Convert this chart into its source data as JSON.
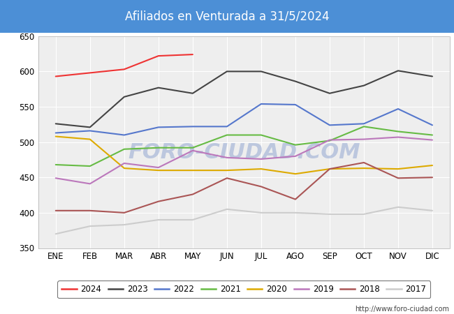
{
  "title": "Afiliados en Venturada a 31/5/2024",
  "title_color": "white",
  "title_bg_color": "#4C8FD6",
  "ylim": [
    350,
    650
  ],
  "yticks": [
    350,
    400,
    450,
    500,
    550,
    600,
    650
  ],
  "months": [
    "ENE",
    "FEB",
    "MAR",
    "ABR",
    "MAY",
    "JUN",
    "JUL",
    "AGO",
    "SEP",
    "OCT",
    "NOV",
    "DIC"
  ],
  "watermark": "FORO-CIUDAD.COM",
  "url": "http://www.foro-ciudad.com",
  "series": {
    "2024": {
      "color": "#EE3333",
      "linewidth": 1.5,
      "data": [
        593,
        598,
        603,
        622,
        624,
        null,
        null,
        null,
        null,
        null,
        null,
        null
      ]
    },
    "2023": {
      "color": "#444444",
      "linewidth": 1.5,
      "data": [
        526,
        521,
        564,
        577,
        569,
        600,
        600,
        586,
        569,
        580,
        601,
        593
      ]
    },
    "2022": {
      "color": "#5577CC",
      "linewidth": 1.5,
      "data": [
        513,
        516,
        510,
        521,
        522,
        522,
        554,
        553,
        524,
        526,
        547,
        524
      ]
    },
    "2021": {
      "color": "#66BB44",
      "linewidth": 1.5,
      "data": [
        468,
        466,
        490,
        492,
        492,
        510,
        510,
        496,
        502,
        522,
        515,
        510
      ]
    },
    "2020": {
      "color": "#DDAA00",
      "linewidth": 1.5,
      "data": [
        508,
        504,
        463,
        460,
        460,
        460,
        462,
        455,
        462,
        463,
        462,
        467
      ]
    },
    "2019": {
      "color": "#BB77BB",
      "linewidth": 1.5,
      "data": [
        449,
        441,
        470,
        464,
        488,
        478,
        476,
        480,
        503,
        504,
        507,
        503
      ]
    },
    "2018": {
      "color": "#AA5555",
      "linewidth": 1.5,
      "data": [
        403,
        403,
        400,
        416,
        426,
        449,
        437,
        419,
        462,
        471,
        449,
        450
      ]
    },
    "2017": {
      "color": "#CCCCCC",
      "linewidth": 1.5,
      "data": [
        370,
        381,
        383,
        390,
        390,
        405,
        400,
        400,
        398,
        398,
        408,
        403
      ]
    }
  },
  "legend_order": [
    "2024",
    "2023",
    "2022",
    "2021",
    "2020",
    "2019",
    "2018",
    "2017"
  ],
  "plot_bg_color": "#EEEEEE",
  "grid_color": "white",
  "figsize": [
    6.5,
    4.5
  ],
  "dpi": 100
}
